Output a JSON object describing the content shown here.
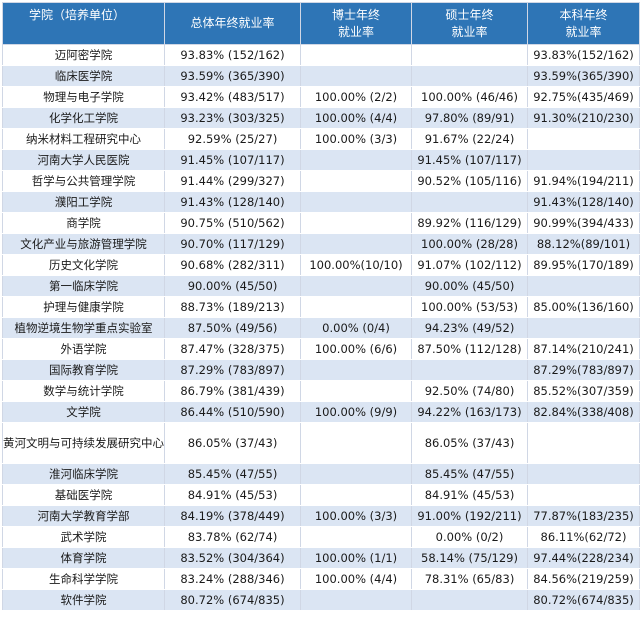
{
  "headers": [
    "学院（培养单位）",
    "总体年终就业率",
    "博士年终\n就业率",
    "硕士年终\n就业率",
    "本科年终\n就业率"
  ],
  "rows": [
    {
      "name": "迈阿密学院",
      "total": "93.83% (152/162)",
      "phd": "",
      "master": "",
      "bachelor": "93.83%(152/162)"
    },
    {
      "name": "临床医学院",
      "total": "93.59% (365/390)",
      "phd": "",
      "master": "",
      "bachelor": "93.59%(365/390)"
    },
    {
      "name": "物理与电子学院",
      "total": "93.42% (483/517)",
      "phd": "100.00% (2/2)",
      "master": "100.00% (46/46)",
      "bachelor": "92.75%(435/469)"
    },
    {
      "name": "化学化工学院",
      "total": "93.23% (303/325)",
      "phd": "100.00% (4/4)",
      "master": "97.80% (89/91)",
      "bachelor": "91.30%(210/230)"
    },
    {
      "name": "纳米材料工程研究中心",
      "total": "92.59% (25/27)",
      "phd": "100.00% (3/3)",
      "master": "91.67% (22/24)",
      "bachelor": ""
    },
    {
      "name": "河南大学人民医院",
      "total": "91.45% (107/117)",
      "phd": "",
      "master": "91.45% (107/117)",
      "bachelor": ""
    },
    {
      "name": "哲学与公共管理学院",
      "total": "91.44% (299/327)",
      "phd": "",
      "master": "90.52% (105/116)",
      "bachelor": "91.94%(194/211)"
    },
    {
      "name": "濮阳工学院",
      "total": "91.43% (128/140)",
      "phd": "",
      "master": "",
      "bachelor": "91.43%(128/140)"
    },
    {
      "name": "商学院",
      "total": "90.75% (510/562)",
      "phd": "",
      "master": "89.92% (116/129)",
      "bachelor": "90.99%(394/433)"
    },
    {
      "name": "文化产业与旅游管理学院",
      "total": "90.70% (117/129)",
      "phd": "",
      "master": "100.00% (28/28)",
      "bachelor": "88.12%(89/101)"
    },
    {
      "name": "历史文化学院",
      "total": "90.68% (282/311)",
      "phd": "100.00%(10/10)",
      "master": "91.07% (102/112)",
      "bachelor": "89.95%(170/189)"
    },
    {
      "name": "第一临床学院",
      "total": "90.00% (45/50)",
      "phd": "",
      "master": "90.00% (45/50)",
      "bachelor": ""
    },
    {
      "name": "护理与健康学院",
      "total": "88.73% (189/213)",
      "phd": "",
      "master": "100.00% (53/53)",
      "bachelor": "85.00%(136/160)"
    },
    {
      "name": "植物逆境生物学重点实验室",
      "total": "87.50% (49/56)",
      "phd": "0.00% (0/4)",
      "master": "94.23% (49/52)",
      "bachelor": ""
    },
    {
      "name": "外语学院",
      "total": "87.47% (328/375)",
      "phd": "100.00% (6/6)",
      "master": "87.50% (112/128)",
      "bachelor": "87.14%(210/241)"
    },
    {
      "name": "国际教育学院",
      "total": "87.29% (783/897)",
      "phd": "",
      "master": "",
      "bachelor": "87.29%(783/897)"
    },
    {
      "name": "数学与统计学院",
      "total": "86.79% (381/439)",
      "phd": "",
      "master": "92.50% (74/80)",
      "bachelor": "85.52%(307/359)"
    },
    {
      "name": "文学院",
      "total": "86.44% (510/590)",
      "phd": "100.00% (9/9)",
      "master": "94.22% (163/173)",
      "bachelor": "82.84%(338/408)"
    },
    {
      "name": "黄河文明与可持续发展研究中心",
      "total": "86.05% (37/43)",
      "phd": "",
      "master": "86.05% (37/43)",
      "bachelor": "",
      "tall": true
    },
    {
      "name": "淮河临床学院",
      "total": "85.45% (47/55)",
      "phd": "",
      "master": "85.45% (47/55)",
      "bachelor": ""
    },
    {
      "name": "基础医学院",
      "total": "84.91% (45/53)",
      "phd": "",
      "master": "84.91% (45/53)",
      "bachelor": ""
    },
    {
      "name": "河南大学教育学部",
      "total": "84.19% (378/449)",
      "phd": "100.00% (3/3)",
      "master": "91.00% (192/211)",
      "bachelor": "77.87%(183/235)"
    },
    {
      "name": "武术学院",
      "total": "83.78% (62/74)",
      "phd": "",
      "master": "0.00% (0/2)",
      "bachelor": "86.11%(62/72)"
    },
    {
      "name": "体育学院",
      "total": "83.52% (304/364)",
      "phd": "100.00% (1/1)",
      "master": "58.14% (75/129)",
      "bachelor": "97.44%(228/234)"
    },
    {
      "name": "生命科学学院",
      "total": "83.24% (288/346)",
      "phd": "100.00% (4/4)",
      "master": "78.31% (65/83)",
      "bachelor": "84.56%(219/259)"
    },
    {
      "name": "软件学院",
      "total": "80.72% (674/835)",
      "phd": "",
      "master": "",
      "bachelor": "80.72%(674/835)"
    }
  ]
}
